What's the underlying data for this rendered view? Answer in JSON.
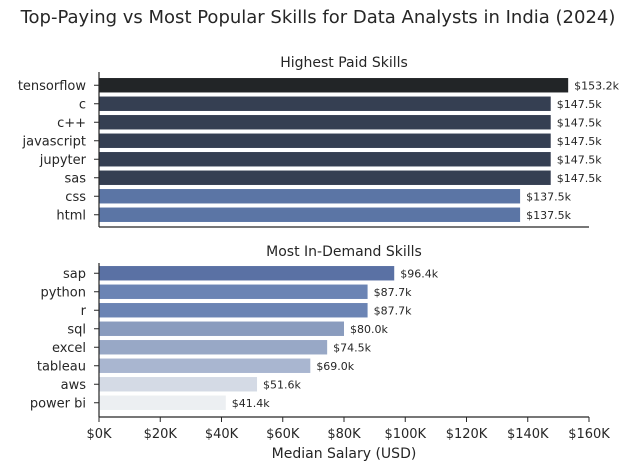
{
  "chart_data": {
    "type": "bar",
    "title": "Top-Paying vs Most Popular Skills for Data Analysts in India (2024)",
    "xlabel": "Median Salary (USD)",
    "xlim": [
      0,
      160000
    ],
    "x_ticks": [
      0,
      20000,
      40000,
      60000,
      80000,
      100000,
      120000,
      140000,
      160000
    ],
    "x_tick_labels": [
      "$0K",
      "$20K",
      "$40K",
      "$60K",
      "$80K",
      "$100K",
      "$120K",
      "$140K",
      "$160K"
    ],
    "orientation": "horizontal",
    "panels": [
      {
        "title": "Highest Paid Skills",
        "categories": [
          "tensorflow",
          "c",
          "c++",
          "javascript",
          "jupyter",
          "sas",
          "css",
          "html"
        ],
        "values": [
          153200,
          147500,
          147500,
          147500,
          147500,
          147500,
          137500,
          137500
        ],
        "labels": [
          "$153.2k",
          "$147.5k",
          "$147.5k",
          "$147.5k",
          "$147.5k",
          "$147.5k",
          "$137.5k",
          "$137.5k"
        ],
        "colors": [
          "#222527",
          "#353f52",
          "#353f52",
          "#353f52",
          "#353f52",
          "#353f52",
          "#5b75a5",
          "#5b75a5"
        ]
      },
      {
        "title": "Most In-Demand Skills",
        "categories": [
          "sap",
          "python",
          "r",
          "sql",
          "excel",
          "tableau",
          "aws",
          "power bi"
        ],
        "values": [
          96400,
          87700,
          87700,
          80000,
          74500,
          69000,
          51600,
          41400
        ],
        "labels": [
          "$96.4k",
          "$87.7k",
          "$87.7k",
          "$80.0k",
          "$74.5k",
          "$69.0k",
          "$51.6k",
          "$41.4k"
        ],
        "colors": [
          "#5a71a4",
          "#6b84b4",
          "#6b84b4",
          "#8a9cbe",
          "#98a8c6",
          "#a9b6d0",
          "#d4dae5",
          "#eceff2"
        ]
      }
    ]
  }
}
